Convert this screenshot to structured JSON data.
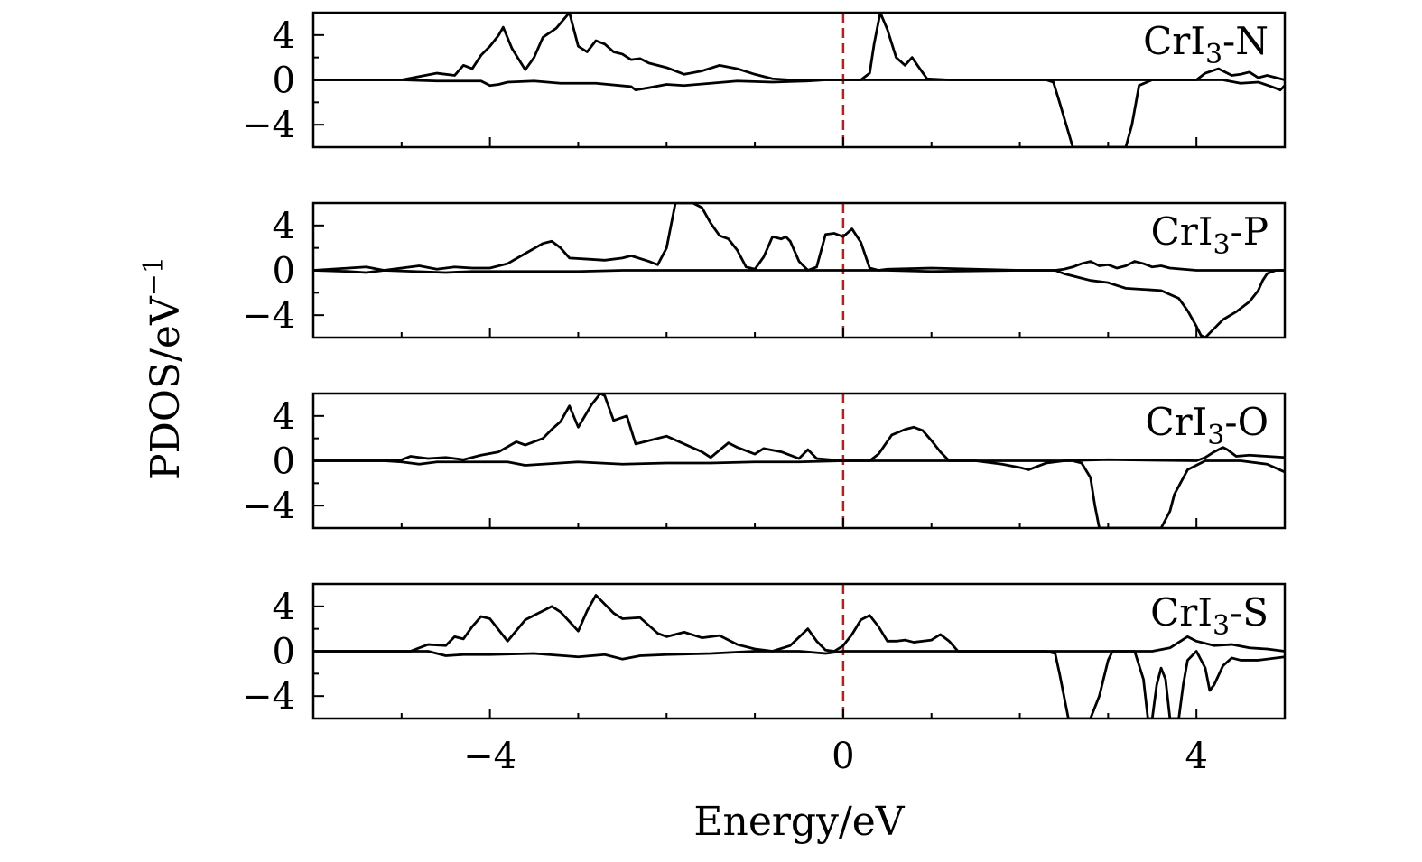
{
  "chart_data": {
    "type": "line",
    "xlabel": "Energy/eV",
    "ylabel": "PDOS/eV",
    "ylabel_superscript": "−1",
    "xlim": [
      -6,
      5
    ],
    "ylim": [
      -6,
      6
    ],
    "xticks_major": [
      -4,
      0,
      4
    ],
    "xtick_labels": [
      "−4",
      "0",
      "4"
    ],
    "yticks_major": [
      -4,
      0,
      4
    ],
    "ytick_labels": [
      "−4",
      "0",
      "4"
    ],
    "reference_line": {
      "x": 0,
      "color": "#b22222",
      "style": "dashed"
    },
    "line_color": "#000000",
    "grid": false,
    "legend": "none",
    "panels": [
      {
        "label_main": "CrI",
        "label_sub": "3",
        "label_suffix": "-N",
        "series": [
          {
            "x": [
              -6,
              -5,
              -4.8,
              -4.6,
              -4.4,
              -4.3,
              -4.2,
              -4.1,
              -4.0,
              -3.9,
              -3.85,
              -3.75,
              -3.6,
              -3.5,
              -3.4,
              -3.25,
              -3.1,
              -3.0,
              -2.9,
              -2.8,
              -2.7,
              -2.6,
              -2.5,
              -2.4,
              -2.3,
              -2.2,
              -2.0,
              -1.8,
              -1.6,
              -1.4,
              -1.2,
              -1.0,
              -0.8,
              -0.6,
              -0.4,
              -0.2,
              0,
              0.2,
              0.3,
              0.35,
              0.42,
              0.5,
              0.6,
              0.7,
              0.78,
              0.85,
              0.95,
              1.2,
              2,
              4,
              4.1,
              4.25,
              4.4,
              4.5,
              4.6,
              4.7,
              4.8,
              5
            ],
            "y": [
              0,
              0,
              0.3,
              0.6,
              0.4,
              1.3,
              1.0,
              2.2,
              3.0,
              4.0,
              4.7,
              2.8,
              0.9,
              2.0,
              3.8,
              4.6,
              6.0,
              3.0,
              2.5,
              3.5,
              3.2,
              2.5,
              2.3,
              1.8,
              1.9,
              1.5,
              1.1,
              0.5,
              0.8,
              1.3,
              1.0,
              0.5,
              0.1,
              0,
              0,
              0,
              0,
              0,
              0.6,
              3.2,
              6.0,
              4.5,
              2.0,
              1.3,
              2.0,
              1.2,
              0.1,
              0,
              0,
              0,
              0.6,
              1.0,
              0.4,
              0.5,
              0.7,
              0.2,
              0.4,
              0
            ]
          },
          {
            "x": [
              -6,
              -5,
              -4.6,
              -4.1,
              -4.0,
              -3.9,
              -3.8,
              -3.5,
              -3.2,
              -2.8,
              -2.4,
              -2.35,
              -2.2,
              -2.0,
              -1.8,
              -1.5,
              -1.2,
              -0.8,
              -0.4,
              -0.2,
              0,
              2.0,
              2.3,
              2.38,
              2.45,
              2.6,
              2.9,
              3.1,
              3.2,
              3.27,
              3.35,
              3.5,
              4.0,
              4.3,
              4.5,
              4.7,
              4.85,
              4.95,
              5
            ],
            "y": [
              0,
              0,
              -0.1,
              -0.1,
              -0.5,
              -0.4,
              -0.2,
              -0.1,
              -0.3,
              -0.3,
              -0.6,
              -0.9,
              -0.7,
              -0.4,
              -0.5,
              -0.3,
              -0.1,
              -0.2,
              -0.1,
              0,
              0,
              0,
              0,
              -0.2,
              -2.0,
              -6.0,
              -6.0,
              -6.0,
              -6.0,
              -4.0,
              -0.5,
              0,
              0,
              0,
              -0.3,
              -0.2,
              -0.6,
              -0.9,
              -0.5
            ]
          }
        ]
      },
      {
        "label_main": "CrI",
        "label_sub": "3",
        "label_suffix": "-P",
        "series": [
          {
            "x": [
              -6,
              -5.6,
              -5.4,
              -5.2,
              -5.0,
              -4.8,
              -4.6,
              -4.4,
              -4.2,
              -4.0,
              -3.8,
              -3.6,
              -3.4,
              -3.3,
              -3.2,
              -3.1,
              -2.9,
              -2.7,
              -2.5,
              -2.4,
              -2.2,
              -2.1,
              -2.0,
              -1.95,
              -1.9,
              -1.8,
              -1.7,
              -1.6,
              -1.5,
              -1.4,
              -1.3,
              -1.2,
              -1.1,
              -1.0,
              -0.9,
              -0.8,
              -0.7,
              -0.65,
              -0.6,
              -0.5,
              -0.4,
              -0.3,
              -0.2,
              -0.1,
              0,
              0.1,
              0.2,
              0.3,
              0.4,
              0.5,
              1.0,
              2.0,
              2.4,
              2.5,
              2.6,
              2.7,
              2.8,
              2.9,
              3.0,
              3.1,
              3.2,
              3.3,
              3.4,
              3.5,
              3.6,
              3.7,
              4.0,
              5
            ],
            "y": [
              0,
              0.2,
              0.3,
              0,
              0.2,
              0.4,
              0.1,
              0.3,
              0.2,
              0.2,
              0.6,
              1.5,
              2.4,
              2.6,
              2.0,
              1.1,
              1.0,
              0.9,
              1.1,
              1.3,
              0.8,
              0.5,
              2.0,
              4.0,
              6.0,
              6.0,
              6.0,
              5.6,
              4.2,
              3.1,
              2.8,
              1.8,
              0.3,
              0.1,
              1.2,
              3.0,
              2.8,
              3.0,
              2.6,
              0.8,
              0.0,
              0.3,
              3.2,
              3.3,
              3.0,
              3.7,
              2.5,
              0.2,
              0,
              0.1,
              0.2,
              0,
              0,
              0.1,
              0.3,
              0.6,
              0.8,
              0.4,
              0.5,
              0.2,
              0.4,
              0.8,
              0.6,
              0.3,
              0.4,
              0.2,
              0,
              0
            ]
          },
          {
            "x": [
              -6,
              -5.6,
              -5.4,
              -5.2,
              -4.5,
              -4.2,
              -4.0,
              -3.5,
              -3.0,
              -2.5,
              -2.0,
              -1.5,
              -1.0,
              -0.5,
              0,
              0.5,
              1.0,
              2.0,
              2.4,
              2.5,
              2.6,
              2.8,
              3.0,
              3.2,
              3.4,
              3.6,
              3.8,
              3.9,
              4.0,
              4.05,
              4.1,
              4.2,
              4.3,
              4.45,
              4.6,
              4.7,
              4.75,
              4.8,
              4.9,
              5
            ],
            "y": [
              0,
              -0.1,
              -0.2,
              0,
              -0.2,
              -0.1,
              -0.1,
              -0.1,
              -0.1,
              0,
              0,
              0,
              0,
              0,
              0,
              0,
              -0.1,
              0,
              0,
              -0.3,
              -0.5,
              -0.9,
              -1.1,
              -1.6,
              -1.7,
              -1.8,
              -2.5,
              -3.6,
              -5.0,
              -5.8,
              -6.0,
              -5.2,
              -4.4,
              -3.7,
              -2.8,
              -1.8,
              -0.9,
              -0.3,
              0,
              0
            ]
          }
        ]
      },
      {
        "label_main": "CrI",
        "label_sub": "3",
        "label_suffix": "-O",
        "series": [
          {
            "x": [
              -6,
              -5.2,
              -5.0,
              -4.9,
              -4.7,
              -4.5,
              -4.3,
              -4.1,
              -3.9,
              -3.7,
              -3.6,
              -3.4,
              -3.3,
              -3.2,
              -3.1,
              -3.0,
              -2.85,
              -2.75,
              -2.7,
              -2.6,
              -2.45,
              -2.35,
              -2.2,
              -2.0,
              -1.8,
              -1.6,
              -1.5,
              -1.3,
              -1.2,
              -1.0,
              -0.9,
              -0.7,
              -0.5,
              -0.4,
              -0.3,
              0,
              0.2,
              0.3,
              0.4,
              0.55,
              0.7,
              0.8,
              0.9,
              1.0,
              1.1,
              1.2,
              2.0,
              2.5,
              3.0,
              4.0,
              4.1,
              4.2,
              4.3,
              4.35,
              4.45,
              4.6,
              4.8,
              5
            ],
            "y": [
              0,
              0,
              0.1,
              0.4,
              0.2,
              0.3,
              0.1,
              0.5,
              0.8,
              1.7,
              1.4,
              2.0,
              2.8,
              3.5,
              4.9,
              3.0,
              5.0,
              6.0,
              5.8,
              3.6,
              4.0,
              1.5,
              1.8,
              2.2,
              1.5,
              0.8,
              0.3,
              1.6,
              1.2,
              0.6,
              1.1,
              0.8,
              0.2,
              1.0,
              0.2,
              0,
              0,
              0,
              0.6,
              2.3,
              2.8,
              3.0,
              2.7,
              1.8,
              0.8,
              0,
              0,
              0,
              0.1,
              0,
              0.3,
              0.8,
              1.2,
              1.0,
              0.4,
              0.5,
              0.4,
              0.3
            ]
          },
          {
            "x": [
              -6,
              -5.2,
              -5.0,
              -4.8,
              -4.6,
              -4.2,
              -3.8,
              -3.6,
              -3.0,
              -2.5,
              -2.0,
              -1.5,
              -1.0,
              -0.5,
              0,
              1.0,
              1.5,
              1.8,
              2.0,
              2.1,
              2.3,
              2.5,
              2.6,
              2.7,
              2.8,
              2.85,
              2.9,
              3.0,
              3.2,
              3.4,
              3.6,
              3.7,
              3.75,
              3.9,
              4.1,
              4.5,
              4.8,
              5
            ],
            "y": [
              0,
              0,
              -0.1,
              -0.3,
              -0.1,
              -0.1,
              -0.1,
              -0.4,
              -0.1,
              -0.3,
              -0.2,
              -0.2,
              -0.1,
              -0.1,
              0,
              0,
              0,
              -0.3,
              -0.6,
              -0.8,
              -0.2,
              0,
              0,
              -0.2,
              -1.5,
              -4.0,
              -6.0,
              -6.0,
              -6.0,
              -6.0,
              -6.0,
              -4.5,
              -3.0,
              -0.8,
              0,
              0,
              -0.3,
              -1.0
            ]
          }
        ]
      },
      {
        "label_main": "CrI",
        "label_sub": "3",
        "label_suffix": "-S",
        "series": [
          {
            "x": [
              -6,
              -4.9,
              -4.7,
              -4.5,
              -4.4,
              -4.3,
              -4.2,
              -4.1,
              -4.0,
              -3.8,
              -3.6,
              -3.5,
              -3.3,
              -3.2,
              -3.0,
              -2.9,
              -2.8,
              -2.6,
              -2.5,
              -2.3,
              -2.1,
              -2.0,
              -1.8,
              -1.6,
              -1.4,
              -1.2,
              -1.0,
              -0.8,
              -0.6,
              -0.4,
              -0.3,
              -0.2,
              -0.1,
              0,
              0.1,
              0.2,
              0.3,
              0.4,
              0.5,
              0.6,
              0.7,
              0.8,
              1.0,
              1.1,
              1.2,
              1.3,
              3.5,
              3.7,
              3.8,
              3.9,
              4.0,
              4.2,
              4.4,
              4.6,
              4.8,
              5
            ],
            "y": [
              0,
              0,
              0.6,
              0.5,
              1.3,
              1.1,
              2.2,
              3.1,
              2.9,
              0.9,
              2.8,
              3.2,
              4.0,
              3.5,
              1.8,
              3.6,
              5.0,
              3.4,
              2.9,
              3.0,
              1.6,
              1.3,
              1.7,
              1.2,
              1.4,
              0.6,
              0.2,
              0,
              0.5,
              2.0,
              0.9,
              0.1,
              0,
              0.5,
              1.5,
              2.8,
              3.2,
              2.2,
              0.9,
              0.9,
              1.0,
              0.8,
              1.0,
              1.5,
              0.9,
              0,
              0,
              0.3,
              0.8,
              1.3,
              0.9,
              0.5,
              0.6,
              0.3,
              0.2,
              0
            ]
          },
          {
            "x": [
              -6,
              -4.7,
              -4.5,
              -4.3,
              -4.0,
              -3.5,
              -3.0,
              -2.7,
              -2.5,
              -2.3,
              -2.0,
              -1.5,
              -1.0,
              -0.5,
              -0.2,
              0,
              2.3,
              2.4,
              2.45,
              2.55,
              2.65,
              2.8,
              2.9,
              3.0,
              3.05,
              3.1,
              3.3,
              3.4,
              3.45,
              3.5,
              3.55,
              3.6,
              3.65,
              3.7,
              3.8,
              3.85,
              3.9,
              4.0,
              4.1,
              4.15,
              4.2,
              4.3,
              4.4,
              4.5,
              4.7,
              5
            ],
            "y": [
              0,
              0,
              -0.4,
              -0.3,
              -0.3,
              -0.2,
              -0.5,
              -0.3,
              -0.7,
              -0.4,
              -0.3,
              -0.2,
              0,
              0,
              -0.2,
              0,
              0,
              -0.2,
              -2.0,
              -6.0,
              -6.0,
              -6.0,
              -4.0,
              -0.8,
              0,
              0,
              0,
              -2.5,
              -6.0,
              -6.0,
              -3.0,
              -1.5,
              -2.5,
              -6.0,
              -6.0,
              -3.0,
              -0.8,
              0,
              -1.5,
              -3.5,
              -3.0,
              -1.3,
              -0.6,
              -0.8,
              -0.8,
              -0.5
            ]
          }
        ]
      }
    ]
  }
}
